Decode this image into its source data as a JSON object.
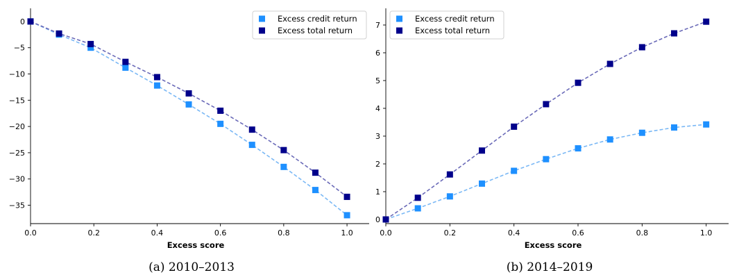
{
  "chart_data": [
    {
      "type": "line",
      "caption": "(a) 2010–2013",
      "xlabel": "Excess score",
      "xlim": [
        0.0,
        1.07
      ],
      "ylim": [
        -38.5,
        2.5
      ],
      "xticks": [
        "0.0",
        "0.2",
        "0.4",
        "0.6",
        "0.8",
        "1.0"
      ],
      "yticks": [
        "0",
        "−5",
        "−10",
        "−15",
        "−20",
        "−25",
        "−30",
        "−35"
      ],
      "xtick_values": [
        0.0,
        0.2,
        0.4,
        0.6,
        0.8,
        1.0
      ],
      "ytick_values": [
        0,
        -5,
        -10,
        -15,
        -20,
        -25,
        -30,
        -35
      ],
      "legend_position": "top-right",
      "series": [
        {
          "name": "Excess credit return",
          "color": "#1e90ff",
          "line_color": "#7ab8f5",
          "x": [
            0.0,
            0.09,
            0.19,
            0.3,
            0.4,
            0.5,
            0.6,
            0.7,
            0.8,
            0.9,
            1.0
          ],
          "y": [
            0.0,
            -2.5,
            -5.0,
            -8.8,
            -12.2,
            -15.8,
            -19.5,
            -23.5,
            -27.7,
            -32.1,
            -36.9
          ]
        },
        {
          "name": "Excess total return",
          "color": "#00008b",
          "line_color": "#6a6ab8",
          "x": [
            0.0,
            0.09,
            0.19,
            0.3,
            0.4,
            0.5,
            0.6,
            0.7,
            0.8,
            0.9,
            1.0
          ],
          "y": [
            0.0,
            -2.3,
            -4.3,
            -7.7,
            -10.6,
            -13.7,
            -17.0,
            -20.6,
            -24.5,
            -28.8,
            -33.4
          ]
        }
      ]
    },
    {
      "type": "line",
      "caption": "(b) 2014–2019",
      "xlabel": "Excess score",
      "xlim": [
        0.0,
        1.07
      ],
      "ylim": [
        -0.15,
        7.6
      ],
      "xticks": [
        "0.0",
        "0.2",
        "0.4",
        "0.6",
        "0.8",
        "1.0"
      ],
      "yticks": [
        "0",
        "1",
        "2",
        "3",
        "4",
        "5",
        "6",
        "7"
      ],
      "xtick_values": [
        0.0,
        0.2,
        0.4,
        0.6,
        0.8,
        1.0
      ],
      "ytick_values": [
        0,
        1,
        2,
        3,
        4,
        5,
        6,
        7
      ],
      "legend_position": "top-left",
      "series": [
        {
          "name": "Excess credit return",
          "color": "#1e90ff",
          "line_color": "#7ab8f5",
          "x": [
            0.0,
            0.1,
            0.2,
            0.3,
            0.4,
            0.5,
            0.6,
            0.7,
            0.8,
            0.9,
            1.0
          ],
          "y": [
            0.0,
            0.4,
            0.83,
            1.29,
            1.75,
            2.17,
            2.56,
            2.88,
            3.12,
            3.31,
            3.42
          ]
        },
        {
          "name": "Excess total return",
          "color": "#00008b",
          "line_color": "#6a6ab8",
          "x": [
            0.0,
            0.1,
            0.2,
            0.3,
            0.4,
            0.5,
            0.6,
            0.7,
            0.8,
            0.9,
            1.0
          ],
          "y": [
            0.0,
            0.78,
            1.62,
            2.48,
            3.34,
            4.15,
            4.92,
            5.6,
            6.2,
            6.7,
            7.12
          ]
        }
      ]
    }
  ]
}
